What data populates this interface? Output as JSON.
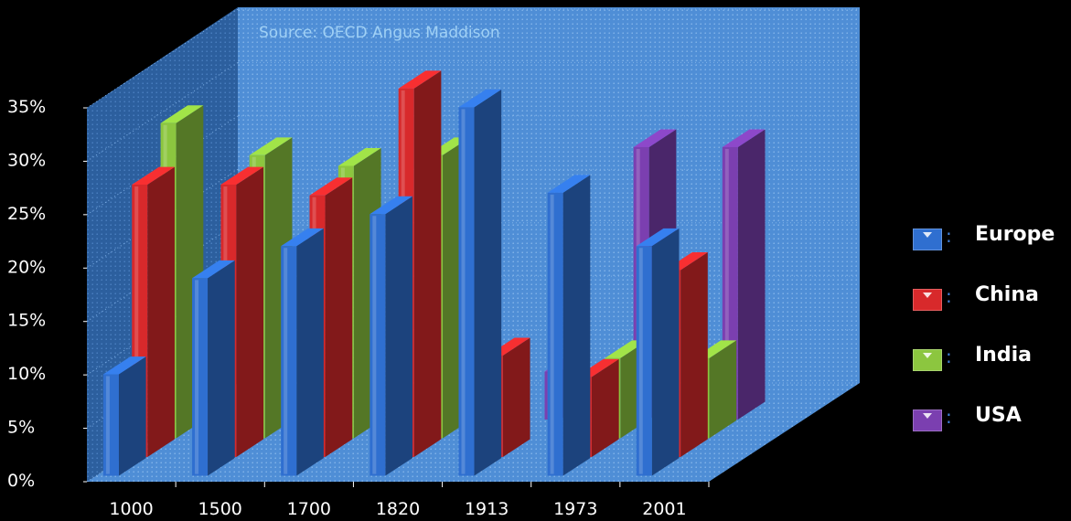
{
  "chart_data": {
    "type": "bar",
    "annotation": "Source: OECD Angus Maddison",
    "categories": [
      "1000",
      "1500",
      "1700",
      "1820",
      "1913",
      "1973",
      "2001"
    ],
    "y_tick_labels": [
      "0%",
      "5%",
      "10%",
      "15%",
      "20%",
      "25%",
      "30%",
      "35%"
    ],
    "ylim": [
      0,
      35
    ],
    "grid": true,
    "legend_position": "right",
    "series": [
      {
        "name": "Europe",
        "color": "#2f6fd0",
        "values": [
          9.5,
          18.5,
          21.5,
          24.5,
          34.5,
          26.5,
          21.5
        ]
      },
      {
        "name": "China",
        "color": "#d8292b",
        "values": [
          25.5,
          25.5,
          24.5,
          34.5,
          9.5,
          7.5,
          17.5
        ]
      },
      {
        "name": "India",
        "color": "#8cc63f",
        "values": [
          29.5,
          26.5,
          25.5,
          26.5,
          null,
          7.5,
          7.5
        ]
      },
      {
        "name": "USA",
        "color": "#7b3fb0",
        "values": [
          null,
          null,
          null,
          null,
          4.5,
          25.5,
          25.5
        ]
      }
    ]
  }
}
